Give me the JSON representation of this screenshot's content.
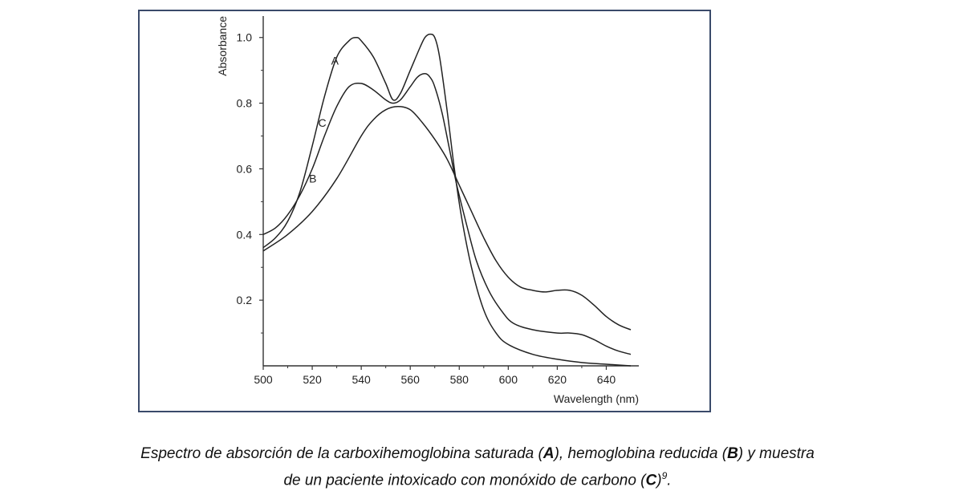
{
  "chart_data": {
    "type": "line",
    "xlabel": "Wavelength (nm)",
    "ylabel": "Absorbance",
    "xlim": [
      500,
      650
    ],
    "ylim": [
      0,
      1.08
    ],
    "xticks": [
      500,
      520,
      540,
      560,
      580,
      600,
      620,
      640
    ],
    "yticks": [
      0.2,
      0.4,
      0.6,
      0.8,
      1.0
    ],
    "ytick_labels": [
      "0.2",
      "0.4",
      "0.6",
      "0.8",
      "1.0"
    ],
    "grid": false,
    "series": [
      {
        "name": "A",
        "x": [
          500,
          505,
          510,
          515,
          520,
          525,
          530,
          535,
          538,
          540,
          545,
          550,
          553,
          556,
          560,
          564,
          566,
          568,
          570,
          572,
          575,
          578,
          581,
          585,
          590,
          595,
          600,
          610,
          620,
          630,
          640,
          650
        ],
        "y": [
          0.36,
          0.39,
          0.44,
          0.53,
          0.67,
          0.82,
          0.94,
          0.99,
          1.0,
          0.99,
          0.94,
          0.86,
          0.81,
          0.83,
          0.9,
          0.97,
          1.0,
          1.01,
          1.0,
          0.94,
          0.78,
          0.6,
          0.45,
          0.3,
          0.17,
          0.1,
          0.065,
          0.035,
          0.02,
          0.01,
          0.005,
          0.0
        ]
      },
      {
        "name": "B",
        "x": [
          500,
          510,
          520,
          530,
          540,
          545,
          550,
          555,
          560,
          565,
          570,
          575,
          580,
          585,
          590,
          595,
          600,
          605,
          610,
          615,
          620,
          625,
          630,
          635,
          640,
          645,
          650
        ],
        "y": [
          0.35,
          0.4,
          0.47,
          0.57,
          0.7,
          0.75,
          0.78,
          0.79,
          0.78,
          0.74,
          0.69,
          0.63,
          0.55,
          0.47,
          0.39,
          0.32,
          0.27,
          0.24,
          0.23,
          0.225,
          0.23,
          0.23,
          0.215,
          0.185,
          0.15,
          0.125,
          0.11
        ]
      },
      {
        "name": "C",
        "x": [
          500,
          505,
          510,
          515,
          520,
          525,
          530,
          535,
          540,
          545,
          550,
          553,
          556,
          560,
          563,
          566,
          568,
          570,
          573,
          576,
          579,
          583,
          587,
          592,
          597,
          602,
          610,
          620,
          625,
          630,
          635,
          640,
          645,
          650
        ],
        "y": [
          0.4,
          0.42,
          0.46,
          0.52,
          0.6,
          0.7,
          0.79,
          0.85,
          0.86,
          0.84,
          0.81,
          0.8,
          0.81,
          0.85,
          0.88,
          0.89,
          0.88,
          0.85,
          0.77,
          0.66,
          0.55,
          0.43,
          0.32,
          0.23,
          0.17,
          0.13,
          0.11,
          0.1,
          0.1,
          0.095,
          0.08,
          0.06,
          0.045,
          0.035
        ]
      }
    ]
  },
  "caption": {
    "line1_part1": "Espectro de absorción de la carboxihemoglobina saturada (",
    "label_A": "A",
    "line1_part2": "), hemoglobina reducida (",
    "label_B": "B",
    "line1_part3": ") y muestra",
    "line2_part1": "de un paciente intoxicado con monóxido de carbono (",
    "label_C": "C",
    "line2_part2": ")",
    "ref": "9",
    "line2_end": "."
  }
}
